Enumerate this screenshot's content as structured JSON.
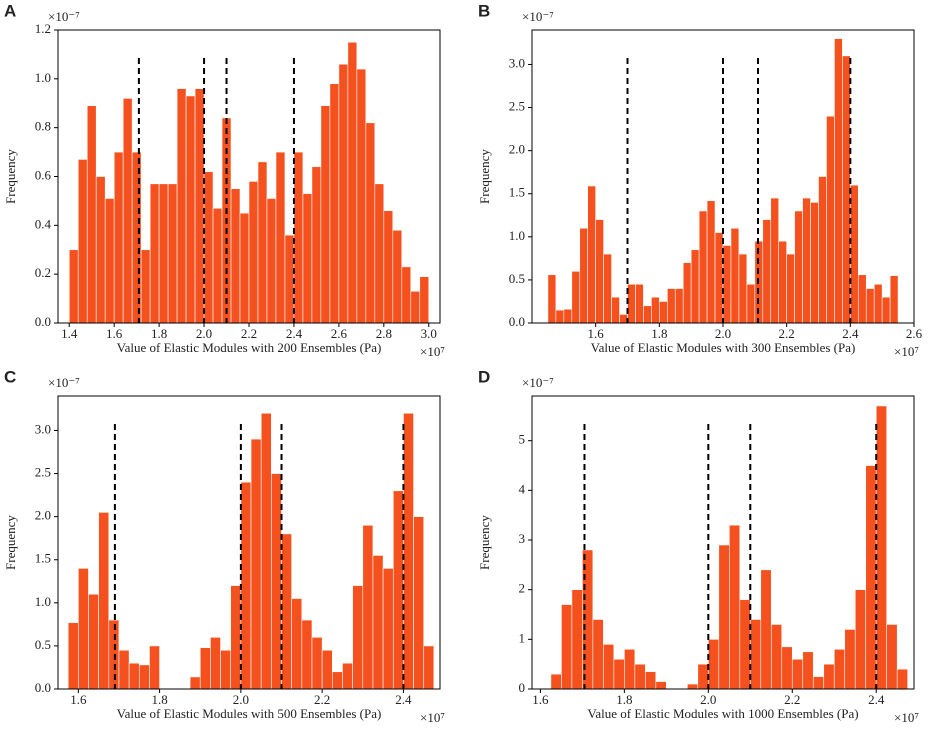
{
  "chart_data": [
    {
      "type": "histogram",
      "panel": "A",
      "xlabel": "Value of Elastic Modules with 200 Ensembles (Pa)",
      "ylabel": "Frequency",
      "x_offset": "×10⁷",
      "y_offset": "×10⁻⁷",
      "color": "#f4511e",
      "bins": [
        1.4,
        1.44,
        1.48,
        1.52,
        1.56,
        1.6,
        1.64,
        1.68,
        1.72,
        1.76,
        1.8,
        1.84,
        1.88,
        1.92,
        1.96,
        2.0,
        2.04,
        2.08,
        2.12,
        2.16,
        2.2,
        2.24,
        2.28,
        2.32,
        2.36,
        2.4,
        2.44,
        2.48,
        2.52,
        2.56,
        2.6,
        2.64,
        2.68,
        2.72,
        2.76,
        2.8,
        2.84,
        2.88,
        2.92,
        2.96,
        3.0
      ],
      "values": [
        0.3,
        0.67,
        0.89,
        0.6,
        0.51,
        0.7,
        0.92,
        0.7,
        0.3,
        0.57,
        0.57,
        0.57,
        0.96,
        0.93,
        0.96,
        0.62,
        0.47,
        0.84,
        0.55,
        0.45,
        0.58,
        0.66,
        0.51,
        0.7,
        0.36,
        0.7,
        0.53,
        0.64,
        0.89,
        0.98,
        1.06,
        1.15,
        1.04,
        0.82,
        0.57,
        0.46,
        0.38,
        0.23,
        0.13,
        0.19
      ],
      "vlines": [
        1.71,
        2.0,
        2.1,
        2.4
      ],
      "xlim": [
        1.35,
        3.05
      ],
      "ylim": [
        0,
        1.2
      ],
      "xticks": [
        1.4,
        1.6,
        1.8,
        {
          "value": 2.0,
          "label": "2.0"
        },
        2.2,
        2.4,
        2.6,
        2.8,
        {
          "value": 3.0,
          "label": "3.0"
        }
      ],
      "yticks": [
        {
          "value": 0,
          "label": "0.0"
        },
        0.2,
        0.4,
        0.6,
        0.8,
        {
          "value": 1,
          "label": "1.0"
        },
        1.2
      ]
    },
    {
      "type": "histogram",
      "panel": "B",
      "xlabel": "Value of Elastic Modules with 300 Ensembles (Pa)",
      "ylabel": "Frequency",
      "x_offset": "×10⁷",
      "y_offset": "×10⁻⁷",
      "color": "#f4511e",
      "bins": [
        1.45,
        1.475,
        1.5,
        1.525,
        1.55,
        1.575,
        1.6,
        1.625,
        1.65,
        1.675,
        1.7,
        1.725,
        1.75,
        1.775,
        1.8,
        1.825,
        1.85,
        1.875,
        1.9,
        1.925,
        1.95,
        1.975,
        2.0,
        2.025,
        2.05,
        2.075,
        2.1,
        2.125,
        2.15,
        2.175,
        2.2,
        2.225,
        2.25,
        2.275,
        2.3,
        2.325,
        2.35,
        2.375,
        2.4,
        2.425,
        2.45,
        2.475,
        2.5,
        2.525,
        2.55
      ],
      "values": [
        0.56,
        0.15,
        0.16,
        0.6,
        1.1,
        1.59,
        1.2,
        0.8,
        0.3,
        0.1,
        0.45,
        0.45,
        0.2,
        0.3,
        0.25,
        0.4,
        0.4,
        0.7,
        0.85,
        1.3,
        1.42,
        1.05,
        0.9,
        1.1,
        0.8,
        0.45,
        0.95,
        1.2,
        1.45,
        0.95,
        0.8,
        1.3,
        1.45,
        1.4,
        1.7,
        2.4,
        3.3,
        3.1,
        1.6,
        0.56,
        0.4,
        0.45,
        0.3,
        0.55
      ],
      "vlines": [
        1.7,
        2.0,
        2.11,
        2.4
      ],
      "xlim": [
        1.4,
        2.6
      ],
      "ylim": [
        0,
        3.4
      ],
      "xticks": [
        1.6,
        1.8,
        {
          "value": 2.0,
          "label": "2.0"
        },
        2.2,
        2.4,
        2.6
      ],
      "yticks": [
        {
          "value": 0,
          "label": "0.0"
        },
        0.5,
        {
          "value": 1,
          "label": "1.0"
        },
        1.5,
        {
          "value": 2,
          "label": "2.0"
        },
        2.5,
        {
          "value": 3,
          "label": "3.0"
        }
      ]
    },
    {
      "type": "histogram",
      "panel": "C",
      "xlabel": "Value of Elastic Modules with 500 Ensembles (Pa)",
      "ylabel": "Frequency",
      "x_offset": "×10⁷",
      "y_offset": "×10⁻⁷",
      "color": "#f4511e",
      "bins": [
        1.575,
        1.6,
        1.625,
        1.65,
        1.675,
        1.7,
        1.725,
        1.75,
        1.775,
        1.8,
        1.825,
        1.85,
        1.875,
        1.9,
        1.925,
        1.95,
        1.975,
        2.0,
        2.025,
        2.05,
        2.075,
        2.1,
        2.125,
        2.15,
        2.175,
        2.2,
        2.225,
        2.25,
        2.275,
        2.3,
        2.325,
        2.35,
        2.375,
        2.4,
        2.425,
        2.45,
        2.475
      ],
      "values": [
        0.77,
        1.4,
        1.1,
        2.05,
        0.8,
        0.45,
        0.3,
        0.28,
        0.5,
        0,
        0,
        0,
        0.14,
        0.48,
        0.6,
        0.45,
        1.2,
        2.4,
        2.9,
        3.2,
        2.5,
        1.8,
        1.05,
        0.8,
        0.6,
        0.45,
        0.2,
        0.3,
        1.2,
        1.9,
        1.55,
        1.4,
        2.3,
        3.2,
        2.0,
        0.5
      ],
      "vlines": [
        1.69,
        2.0,
        2.1,
        2.4
      ],
      "xlim": [
        1.55,
        2.49
      ],
      "ylim": [
        0,
        3.4
      ],
      "xticks": [
        1.6,
        1.8,
        {
          "value": 2.0,
          "label": "2.0"
        },
        2.2,
        2.4
      ],
      "yticks": [
        {
          "value": 0,
          "label": "0.0"
        },
        0.5,
        {
          "value": 1,
          "label": "1.0"
        },
        1.5,
        {
          "value": 2,
          "label": "2.0"
        },
        2.5,
        {
          "value": 3,
          "label": "3.0"
        }
      ]
    },
    {
      "type": "histogram",
      "panel": "D",
      "xlabel": "Value of Elastic Modules with 1000 Ensembles (Pa)",
      "ylabel": "Frequency",
      "x_offset": "×10⁷",
      "y_offset": "×10⁻⁷",
      "color": "#f4511e",
      "bins": [
        1.625,
        1.65,
        1.675,
        1.7,
        1.725,
        1.75,
        1.775,
        1.8,
        1.825,
        1.85,
        1.875,
        1.9,
        1.925,
        1.95,
        1.975,
        2.0,
        2.025,
        2.05,
        2.075,
        2.1,
        2.125,
        2.15,
        2.175,
        2.2,
        2.225,
        2.25,
        2.275,
        2.3,
        2.325,
        2.35,
        2.375,
        2.4,
        2.425,
        2.45,
        2.475
      ],
      "values": [
        0.3,
        1.7,
        2.0,
        2.8,
        1.4,
        0.9,
        0.6,
        0.8,
        0.5,
        0.35,
        0.15,
        0,
        0,
        0.1,
        0.5,
        1.0,
        2.9,
        3.3,
        1.8,
        1.4,
        2.4,
        1.3,
        0.85,
        0.6,
        0.75,
        0.25,
        0.5,
        0.8,
        1.2,
        2.0,
        4.5,
        5.7,
        1.3,
        0.4
      ],
      "vlines": [
        1.705,
        2.0,
        2.1,
        2.4
      ],
      "xlim": [
        1.58,
        2.49
      ],
      "ylim": [
        0,
        5.9
      ],
      "xticks": [
        1.6,
        1.8,
        {
          "value": 2.0,
          "label": "2.0"
        },
        2.2,
        2.4
      ],
      "yticks": [
        0,
        1,
        2,
        3,
        4,
        5
      ]
    }
  ]
}
